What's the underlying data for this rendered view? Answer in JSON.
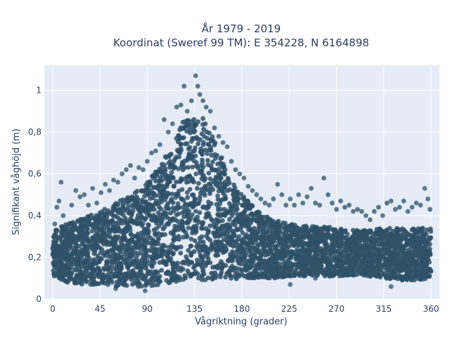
{
  "chart_data": {
    "type": "scatter",
    "title_lines": [
      "År 1979 - 2019",
      "Koordinat (Sweref 99 TM): E 354228, N 6164898"
    ],
    "xlabel": "Vågriktning (grader)",
    "ylabel": "Signifikant våghöjd (m)",
    "xlim": [
      -8,
      368
    ],
    "ylim": [
      0,
      1.12
    ],
    "x_ticks": [
      0,
      45,
      90,
      135,
      180,
      225,
      270,
      315,
      360
    ],
    "x_tick_labels": [
      "0",
      "45",
      "90",
      "135",
      "180",
      "225",
      "270",
      "315",
      "360"
    ],
    "y_ticks": [
      0,
      0.2,
      0.4,
      0.6,
      0.8,
      1.0
    ],
    "y_tick_labels": [
      "0",
      "0,2",
      "0,4",
      "0,6",
      "0,8",
      "1"
    ],
    "grid": true,
    "marker_color": "#2f5168",
    "plot_background": "#e5ecf6",
    "series": [
      {
        "points_xy": [
          [
            0,
            0.24
          ],
          [
            2,
            0.36
          ],
          [
            4,
            0.44
          ],
          [
            6,
            0.47
          ],
          [
            8,
            0.56
          ],
          [
            10,
            0.4
          ],
          [
            12,
            0.12
          ],
          [
            14,
            0.08
          ],
          [
            18,
            0.45
          ],
          [
            22,
            0.52
          ],
          [
            26,
            0.49
          ],
          [
            30,
            0.5
          ],
          [
            34,
            0.45
          ],
          [
            38,
            0.53
          ],
          [
            42,
            0.46
          ],
          [
            46,
            0.51
          ],
          [
            50,
            0.55
          ],
          [
            54,
            0.52
          ],
          [
            58,
            0.57
          ],
          [
            62,
            0.56
          ],
          [
            66,
            0.6
          ],
          [
            70,
            0.62
          ],
          [
            74,
            0.64
          ],
          [
            78,
            0.58
          ],
          [
            82,
            0.63
          ],
          [
            86,
            0.62
          ],
          [
            90,
            0.66
          ],
          [
            94,
            0.7
          ],
          [
            98,
            0.71
          ],
          [
            102,
            0.74
          ],
          [
            106,
            0.86
          ],
          [
            110,
            0.8
          ],
          [
            114,
            0.84
          ],
          [
            118,
            0.92
          ],
          [
            122,
            0.93
          ],
          [
            125,
            1.02
          ],
          [
            128,
            0.9
          ],
          [
            132,
            0.95
          ],
          [
            136,
            1.07
          ],
          [
            138,
            1.02
          ],
          [
            140,
            0.98
          ],
          [
            143,
            0.95
          ],
          [
            146,
            0.92
          ],
          [
            150,
            0.9
          ],
          [
            154,
            0.82
          ],
          [
            158,
            0.78
          ],
          [
            162,
            0.75
          ],
          [
            166,
            0.73
          ],
          [
            170,
            0.66
          ],
          [
            174,
            0.62
          ],
          [
            178,
            0.6
          ],
          [
            182,
            0.58
          ],
          [
            186,
            0.54
          ],
          [
            190,
            0.52
          ],
          [
            194,
            0.5
          ],
          [
            198,
            0.48
          ],
          [
            202,
            0.46
          ],
          [
            206,
            0.45
          ],
          [
            210,
            0.48
          ],
          [
            214,
            0.55
          ],
          [
            218,
            0.5
          ],
          [
            222,
            0.45
          ],
          [
            226,
            0.48
          ],
          [
            230,
            0.45
          ],
          [
            234,
            0.5
          ],
          [
            238,
            0.46
          ],
          [
            242,
            0.49
          ],
          [
            246,
            0.53
          ],
          [
            250,
            0.46
          ],
          [
            254,
            0.45
          ],
          [
            258,
            0.58
          ],
          [
            262,
            0.5
          ],
          [
            266,
            0.46
          ],
          [
            270,
            0.43
          ],
          [
            274,
            0.47
          ],
          [
            278,
            0.44
          ],
          [
            282,
            0.45
          ],
          [
            286,
            0.42
          ],
          [
            290,
            0.43
          ],
          [
            294,
            0.42
          ],
          [
            298,
            0.4
          ],
          [
            302,
            0.38
          ],
          [
            306,
            0.42
          ],
          [
            310,
            0.44
          ],
          [
            314,
            0.4
          ],
          [
            318,
            0.46
          ],
          [
            322,
            0.47
          ],
          [
            326,
            0.43
          ],
          [
            330,
            0.44
          ],
          [
            334,
            0.47
          ],
          [
            338,
            0.42
          ],
          [
            342,
            0.44
          ],
          [
            346,
            0.46
          ],
          [
            350,
            0.45
          ],
          [
            354,
            0.53
          ],
          [
            357,
            0.48
          ],
          [
            359,
            0.43
          ],
          [
            250,
            0.1
          ],
          [
            226,
            0.07
          ],
          [
            322,
            0.06
          ],
          [
            88,
            0.04
          ],
          [
            60,
            0.05
          ]
        ],
        "envelope": [
          {
            "x": 0,
            "lo": 0.11,
            "hi": 0.34
          },
          {
            "x": 15,
            "lo": 0.08,
            "hi": 0.36
          },
          {
            "x": 30,
            "lo": 0.07,
            "hi": 0.4
          },
          {
            "x": 45,
            "lo": 0.07,
            "hi": 0.42
          },
          {
            "x": 60,
            "lo": 0.06,
            "hi": 0.46
          },
          {
            "x": 75,
            "lo": 0.06,
            "hi": 0.5
          },
          {
            "x": 90,
            "lo": 0.06,
            "hi": 0.56
          },
          {
            "x": 105,
            "lo": 0.07,
            "hi": 0.66
          },
          {
            "x": 115,
            "lo": 0.08,
            "hi": 0.76
          },
          {
            "x": 125,
            "lo": 0.09,
            "hi": 0.86
          },
          {
            "x": 135,
            "lo": 0.09,
            "hi": 0.89
          },
          {
            "x": 145,
            "lo": 0.09,
            "hi": 0.86
          },
          {
            "x": 155,
            "lo": 0.09,
            "hi": 0.76
          },
          {
            "x": 165,
            "lo": 0.09,
            "hi": 0.62
          },
          {
            "x": 180,
            "lo": 0.1,
            "hi": 0.5
          },
          {
            "x": 195,
            "lo": 0.1,
            "hi": 0.42
          },
          {
            "x": 210,
            "lo": 0.1,
            "hi": 0.38
          },
          {
            "x": 225,
            "lo": 0.11,
            "hi": 0.36
          },
          {
            "x": 240,
            "lo": 0.11,
            "hi": 0.35
          },
          {
            "x": 255,
            "lo": 0.11,
            "hi": 0.35
          },
          {
            "x": 270,
            "lo": 0.11,
            "hi": 0.34
          },
          {
            "x": 285,
            "lo": 0.11,
            "hi": 0.33
          },
          {
            "x": 300,
            "lo": 0.11,
            "hi": 0.33
          },
          {
            "x": 315,
            "lo": 0.1,
            "hi": 0.34
          },
          {
            "x": 330,
            "lo": 0.09,
            "hi": 0.34
          },
          {
            "x": 345,
            "lo": 0.09,
            "hi": 0.34
          },
          {
            "x": 360,
            "lo": 0.1,
            "hi": 0.34
          }
        ]
      }
    ]
  }
}
